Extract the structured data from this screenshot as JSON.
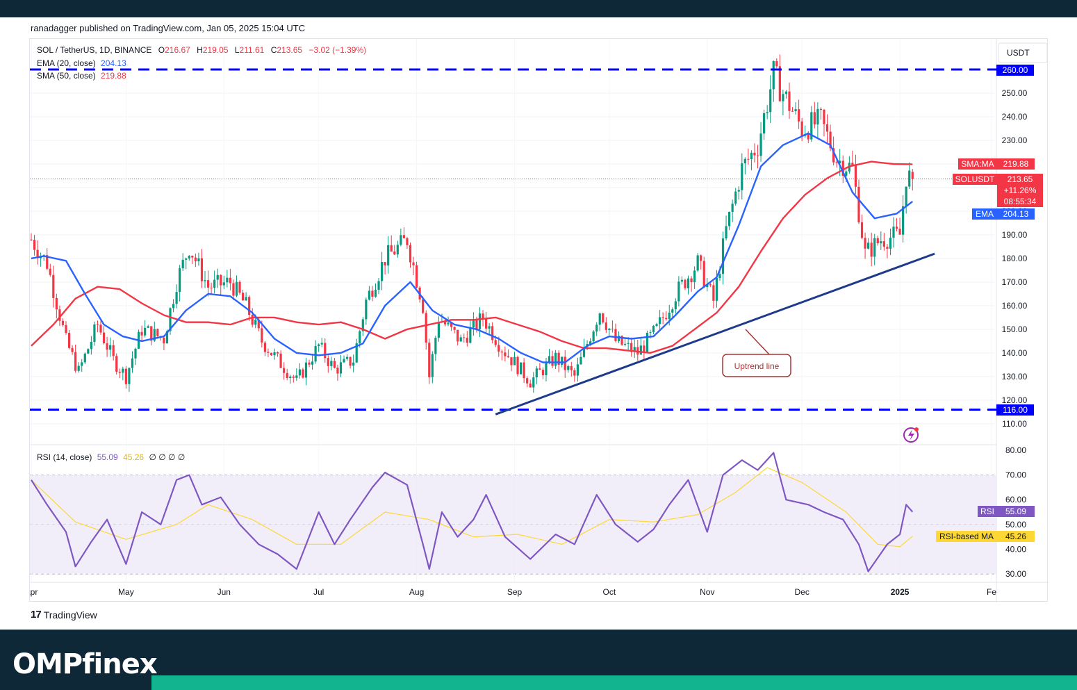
{
  "header": {
    "published": "ranadagger published on TradingView.com, Jan 05, 2025 15:04 UTC"
  },
  "legend": {
    "symbol": "SOL / TetherUS, 1D, BINANCE",
    "o_label": "O",
    "o": "216.67",
    "h_label": "H",
    "h": "219.05",
    "l_label": "L",
    "l": "211.61",
    "c_label": "C",
    "c": "213.65",
    "change": "−3.02 (−1.39%)",
    "ema_label": "EMA (20, close)",
    "ema_value": "204.13",
    "sma_label": "SMA (50, close)",
    "sma_value": "219.88",
    "rsi_label": "RSI (14, close)",
    "rsi_value": "55.09",
    "rsi_ma_value": "45.26",
    "rsi_extra": "∅ ∅ ∅ ∅"
  },
  "currency": "USDT",
  "branding": {
    "tradingview": "TradingView",
    "brand": "OMPfinex"
  },
  "colors": {
    "up": "#089981",
    "down": "#f23645",
    "ema": "#2962ff",
    "sma": "#f23645",
    "level": "#0000ff",
    "trend": "#1e3a8a",
    "rsi": "#7e57c2",
    "rsi_ma": "#fdd835",
    "rsi_band": "#ede7f6"
  },
  "price_axis": {
    "min": 105,
    "max": 262,
    "ticks": [
      110,
      120,
      130,
      140,
      150,
      160,
      170,
      180,
      190,
      200,
      210,
      220,
      230,
      240,
      250
    ]
  },
  "time_axis": [
    "Apr",
    "May",
    "Jun",
    "Jul",
    "Aug",
    "Sep",
    "Oct",
    "Nov",
    "Dec",
    "2025",
    "Fe"
  ],
  "price_labels": {
    "level_top": "260.00",
    "level_bottom": "116.00",
    "sma_tag": "SMA:MA",
    "sma_value": "219.88",
    "last_tag": "SOLUSDT",
    "last_value": "213.65",
    "last_change": "+11.26%",
    "countdown": "08:55:34",
    "ema_tag": "EMA",
    "ema_value": "204.13"
  },
  "annotation": "Uptrend line",
  "rsi_axis": {
    "ticks": [
      30,
      40,
      50,
      60,
      70,
      80
    ]
  },
  "rsi_labels": {
    "rsi_tag": "RSI",
    "rsi_value": "55.09",
    "ma_tag": "RSI-based MA",
    "ma_value": "45.26"
  },
  "chart_data": {
    "type": "candlestick",
    "title": "SOL / TetherUS, 1D, BINANCE",
    "x_range": [
      "2024-04-01",
      "2025-02-01"
    ],
    "y_range": [
      105,
      262
    ],
    "ohlc_last": {
      "open": 216.67,
      "high": 219.05,
      "low": 211.61,
      "close": 213.65
    },
    "horizontal_levels": [
      260,
      116
    ],
    "uptrend_line": {
      "from": [
        "2024-08-26",
        114
      ],
      "to": [
        "2025-01-12",
        182
      ]
    },
    "close_path": [
      [
        "2024-04-01",
        188
      ],
      [
        "2024-04-06",
        178
      ],
      [
        "2024-04-12",
        145
      ],
      [
        "2024-04-16",
        132
      ],
      [
        "2024-04-22",
        152
      ],
      [
        "2024-04-27",
        137
      ],
      [
        "2024-05-01",
        130
      ],
      [
        "2024-05-06",
        150
      ],
      [
        "2024-05-13",
        146
      ],
      [
        "2024-05-17",
        170
      ],
      [
        "2024-05-21",
        185
      ],
      [
        "2024-05-27",
        168
      ],
      [
        "2024-06-03",
        170
      ],
      [
        "2024-06-08",
        160
      ],
      [
        "2024-06-13",
        145
      ],
      [
        "2024-06-18",
        137
      ],
      [
        "2024-06-24",
        128
      ],
      [
        "2024-07-01",
        143
      ],
      [
        "2024-07-06",
        133
      ],
      [
        "2024-07-12",
        137
      ],
      [
        "2024-07-16",
        162
      ],
      [
        "2024-07-22",
        180
      ],
      [
        "2024-07-29",
        188
      ],
      [
        "2024-08-03",
        160
      ],
      [
        "2024-08-05",
        130
      ],
      [
        "2024-08-08",
        155
      ],
      [
        "2024-08-15",
        145
      ],
      [
        "2024-08-22",
        155
      ],
      [
        "2024-08-28",
        142
      ],
      [
        "2024-09-06",
        128
      ],
      [
        "2024-09-14",
        138
      ],
      [
        "2024-09-20",
        130
      ],
      [
        "2024-09-28",
        158
      ],
      [
        "2024-10-03",
        145
      ],
      [
        "2024-10-10",
        140
      ],
      [
        "2024-10-16",
        150
      ],
      [
        "2024-10-22",
        165
      ],
      [
        "2024-10-29",
        178
      ],
      [
        "2024-11-03",
        162
      ],
      [
        "2024-11-07",
        192
      ],
      [
        "2024-11-12",
        218
      ],
      [
        "2024-11-17",
        228
      ],
      [
        "2024-11-22",
        258
      ],
      [
        "2024-11-25",
        250
      ],
      [
        "2024-12-01",
        235
      ],
      [
        "2024-12-07",
        238
      ],
      [
        "2024-12-12",
        222
      ],
      [
        "2024-12-17",
        218
      ],
      [
        "2024-12-21",
        182
      ],
      [
        "2024-12-26",
        188
      ],
      [
        "2025-01-01",
        190
      ],
      [
        "2025-01-03",
        215
      ],
      [
        "2025-01-05",
        213.65
      ]
    ],
    "ema20_path": [
      [
        "2024-04-01",
        180
      ],
      [
        "2024-04-05",
        181
      ],
      [
        "2024-04-12",
        179
      ],
      [
        "2024-04-18",
        165
      ],
      [
        "2024-04-24",
        152
      ],
      [
        "2024-04-30",
        147
      ],
      [
        "2024-05-06",
        145
      ],
      [
        "2024-05-13",
        147
      ],
      [
        "2024-05-20",
        158
      ],
      [
        "2024-05-27",
        165
      ],
      [
        "2024-06-03",
        164
      ],
      [
        "2024-06-10",
        157
      ],
      [
        "2024-06-17",
        146
      ],
      [
        "2024-06-24",
        140
      ],
      [
        "2024-07-01",
        139
      ],
      [
        "2024-07-08",
        140
      ],
      [
        "2024-07-15",
        144
      ],
      [
        "2024-07-22",
        160
      ],
      [
        "2024-07-30",
        170
      ],
      [
        "2024-08-06",
        158
      ],
      [
        "2024-08-13",
        152
      ],
      [
        "2024-08-20",
        150
      ],
      [
        "2024-08-27",
        146
      ],
      [
        "2024-09-03",
        140
      ],
      [
        "2024-09-10",
        136
      ],
      [
        "2024-09-17",
        136
      ],
      [
        "2024-09-24",
        143
      ],
      [
        "2024-10-01",
        147
      ],
      [
        "2024-10-08",
        146
      ],
      [
        "2024-10-15",
        147
      ],
      [
        "2024-10-22",
        156
      ],
      [
        "2024-10-29",
        166
      ],
      [
        "2024-11-04",
        172
      ],
      [
        "2024-11-11",
        194
      ],
      [
        "2024-11-18",
        219
      ],
      [
        "2024-11-25",
        228
      ],
      [
        "2024-12-03",
        233
      ],
      [
        "2024-12-10",
        228
      ],
      [
        "2024-12-17",
        208
      ],
      [
        "2024-12-24",
        197
      ],
      [
        "2024-12-31",
        199
      ],
      [
        "2025-01-05",
        204.13
      ]
    ],
    "sma50_path": [
      [
        "2024-04-01",
        143
      ],
      [
        "2024-04-08",
        152
      ],
      [
        "2024-04-15",
        163
      ],
      [
        "2024-04-22",
        168
      ],
      [
        "2024-04-29",
        167
      ],
      [
        "2024-05-06",
        161
      ],
      [
        "2024-05-13",
        156
      ],
      [
        "2024-05-20",
        153
      ],
      [
        "2024-05-27",
        153
      ],
      [
        "2024-06-03",
        152
      ],
      [
        "2024-06-10",
        155
      ],
      [
        "2024-06-17",
        155
      ],
      [
        "2024-06-24",
        153
      ],
      [
        "2024-07-01",
        152
      ],
      [
        "2024-07-08",
        153
      ],
      [
        "2024-07-15",
        150
      ],
      [
        "2024-07-22",
        146
      ],
      [
        "2024-07-29",
        150
      ],
      [
        "2024-08-05",
        152
      ],
      [
        "2024-08-12",
        154
      ],
      [
        "2024-08-19",
        154
      ],
      [
        "2024-08-26",
        155
      ],
      [
        "2024-09-02",
        152
      ],
      [
        "2024-09-09",
        149
      ],
      [
        "2024-09-16",
        145
      ],
      [
        "2024-09-23",
        142
      ],
      [
        "2024-09-30",
        142
      ],
      [
        "2024-10-07",
        141
      ],
      [
        "2024-10-14",
        140
      ],
      [
        "2024-10-21",
        143
      ],
      [
        "2024-10-28",
        150
      ],
      [
        "2024-11-04",
        157
      ],
      [
        "2024-11-11",
        168
      ],
      [
        "2024-11-18",
        183
      ],
      [
        "2024-11-25",
        197
      ],
      [
        "2024-12-02",
        207
      ],
      [
        "2024-12-09",
        214
      ],
      [
        "2024-12-16",
        219
      ],
      [
        "2024-12-23",
        221
      ],
      [
        "2024-12-30",
        220
      ],
      [
        "2025-01-05",
        219.88
      ]
    ],
    "rsi_path": [
      [
        "2024-04-01",
        68
      ],
      [
        "2024-04-06",
        58
      ],
      [
        "2024-04-12",
        47
      ],
      [
        "2024-04-15",
        33
      ],
      [
        "2024-04-20",
        43
      ],
      [
        "2024-04-25",
        52
      ],
      [
        "2024-05-01",
        34
      ],
      [
        "2024-05-06",
        55
      ],
      [
        "2024-05-12",
        50
      ],
      [
        "2024-05-17",
        68
      ],
      [
        "2024-05-21",
        70
      ],
      [
        "2024-05-25",
        58
      ],
      [
        "2024-05-31",
        61
      ],
      [
        "2024-06-06",
        50
      ],
      [
        "2024-06-12",
        42
      ],
      [
        "2024-06-18",
        38
      ],
      [
        "2024-06-24",
        32
      ],
      [
        "2024-07-01",
        55
      ],
      [
        "2024-07-06",
        42
      ],
      [
        "2024-07-11",
        52
      ],
      [
        "2024-07-18",
        65
      ],
      [
        "2024-07-22",
        71
      ],
      [
        "2024-07-29",
        66
      ],
      [
        "2024-08-03",
        42
      ],
      [
        "2024-08-05",
        32
      ],
      [
        "2024-08-09",
        55
      ],
      [
        "2024-08-14",
        45
      ],
      [
        "2024-08-19",
        52
      ],
      [
        "2024-08-23",
        62
      ],
      [
        "2024-08-29",
        45
      ],
      [
        "2024-09-06",
        36
      ],
      [
        "2024-09-14",
        46
      ],
      [
        "2024-09-20",
        42
      ],
      [
        "2024-09-27",
        62
      ],
      [
        "2024-10-03",
        50
      ],
      [
        "2024-10-10",
        43
      ],
      [
        "2024-10-15",
        48
      ],
      [
        "2024-10-20",
        58
      ],
      [
        "2024-10-26",
        68
      ],
      [
        "2024-11-01",
        47
      ],
      [
        "2024-11-06",
        70
      ],
      [
        "2024-11-12",
        76
      ],
      [
        "2024-11-17",
        72
      ],
      [
        "2024-11-22",
        79
      ],
      [
        "2024-11-26",
        60
      ],
      [
        "2024-12-03",
        58
      ],
      [
        "2024-12-08",
        55
      ],
      [
        "2024-12-14",
        52
      ],
      [
        "2024-12-19",
        42
      ],
      [
        "2024-12-22",
        31
      ],
      [
        "2024-12-28",
        42
      ],
      [
        "2025-01-01",
        46
      ],
      [
        "2025-01-03",
        58
      ],
      [
        "2025-01-05",
        55.09
      ]
    ],
    "rsi_ma_path": [
      [
        "2024-04-01",
        68
      ],
      [
        "2024-04-15",
        51
      ],
      [
        "2024-05-01",
        44
      ],
      [
        "2024-05-17",
        50
      ],
      [
        "2024-05-27",
        58
      ],
      [
        "2024-06-10",
        52
      ],
      [
        "2024-06-24",
        42
      ],
      [
        "2024-07-08",
        42
      ],
      [
        "2024-07-22",
        55
      ],
      [
        "2024-08-05",
        52
      ],
      [
        "2024-08-19",
        45
      ],
      [
        "2024-09-02",
        46
      ],
      [
        "2024-09-16",
        42
      ],
      [
        "2024-10-01",
        52
      ],
      [
        "2024-10-15",
        51
      ],
      [
        "2024-10-29",
        54
      ],
      [
        "2024-11-10",
        63
      ],
      [
        "2024-11-20",
        73
      ],
      [
        "2024-12-01",
        67
      ],
      [
        "2024-12-15",
        55
      ],
      [
        "2024-12-25",
        42
      ],
      [
        "2025-01-01",
        41
      ],
      [
        "2025-01-05",
        45.26
      ]
    ]
  }
}
